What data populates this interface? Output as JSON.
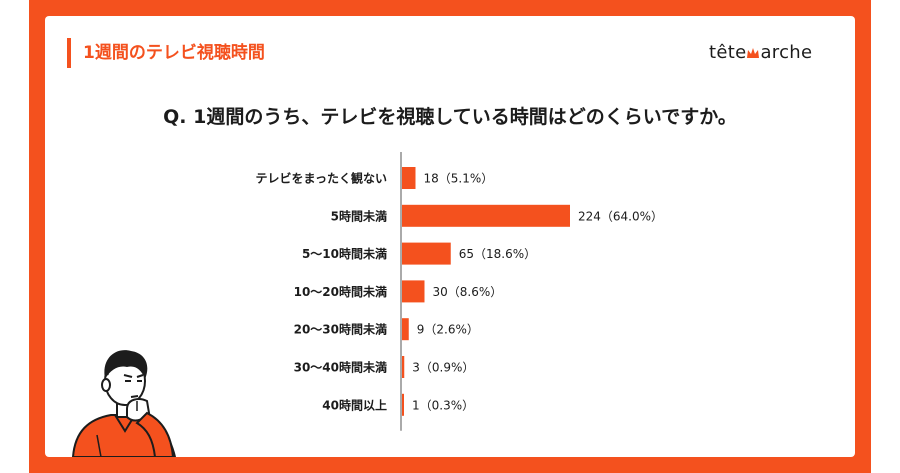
{
  "header": {
    "title": "1週間のテレビ視聴時間",
    "logo_left": "tête",
    "logo_right": "arche"
  },
  "question": "Q. 1週間のうち、テレビを視聴している時間はどのくらいですか。",
  "colors": {
    "accent": "#f4511e",
    "text": "#1c1c1c"
  },
  "chart_data": {
    "type": "bar",
    "orientation": "horizontal",
    "title": "",
    "xlabel": "",
    "ylabel": "",
    "xlim": [
      0,
      224
    ],
    "categories": [
      "テレビをまったく観ない",
      "5時間未満",
      "5〜10時間未満",
      "10〜20時間未満",
      "20〜30時間未満",
      "30〜40時間未満",
      "40時間以上"
    ],
    "values": [
      18,
      224,
      65,
      30,
      9,
      3,
      1
    ],
    "labels": [
      "18（5.1%）",
      "224（64.0%）",
      "65（18.6%）",
      "30（8.6%）",
      "9（2.6%）",
      "3（0.9%）",
      "1（0.3%）"
    ],
    "bar_color": "#f4511e"
  }
}
